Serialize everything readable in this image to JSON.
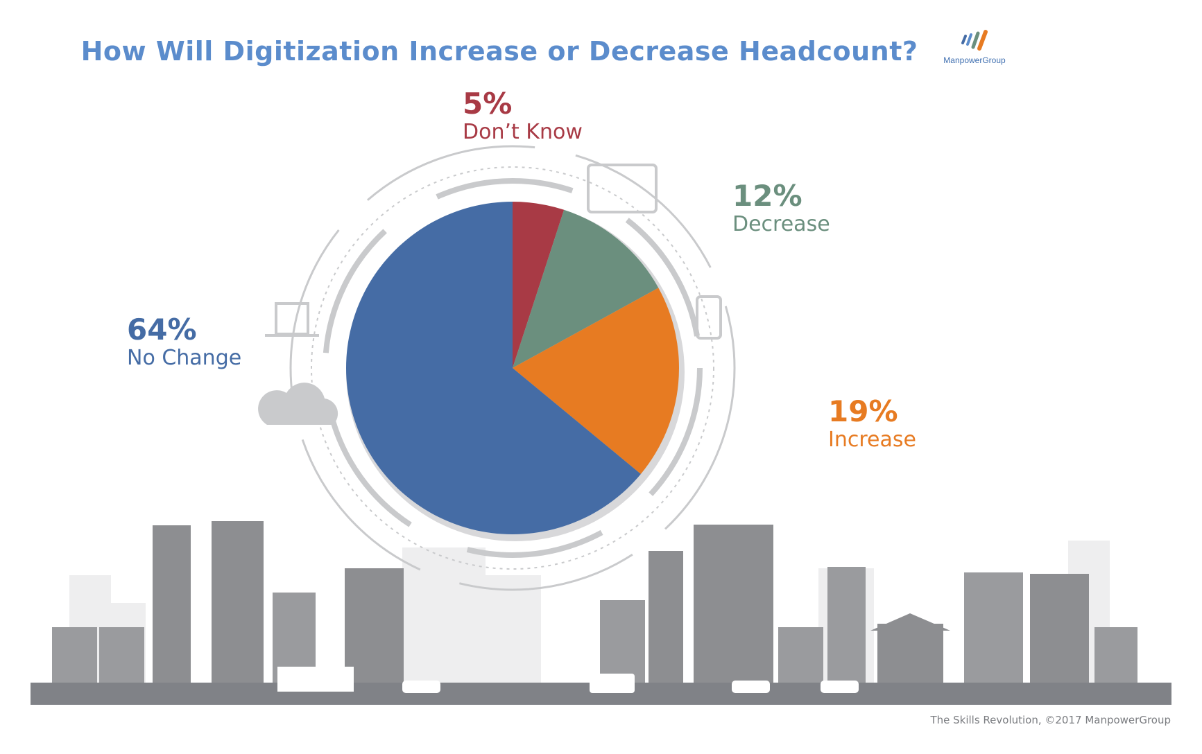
{
  "logo_text": "ManpowerGroup",
  "footer": "The Skills Revolution, ©2017 ManpowerGroup",
  "chart_data": {
    "type": "pie",
    "title": "How Will Digitization Increase or Decrease Headcount?",
    "start": "top, clockwise",
    "slices": [
      {
        "label": "Don’t Know",
        "value": 5,
        "display": "5%",
        "color": "#a83a45"
      },
      {
        "label": "Decrease",
        "value": 12,
        "display": "12%",
        "color": "#6b8f7e"
      },
      {
        "label": "Increase",
        "value": 19,
        "display": "19%",
        "color": "#e77b22"
      },
      {
        "label": "No Change",
        "value": 64,
        "display": "64%",
        "color": "#456ca5"
      }
    ]
  }
}
